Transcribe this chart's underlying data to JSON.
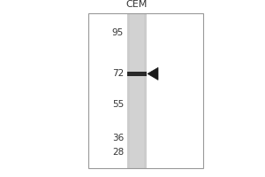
{
  "lane_label": "CEM",
  "mw_markers": [
    95,
    72,
    55,
    36,
    28
  ],
  "band_mw": 72,
  "bg_color": "#ffffff",
  "lane_bg_color": "#cccccc",
  "band_color": "#2a2a2a",
  "arrow_color": "#1a1a1a",
  "label_color": "#333333",
  "border_color": "#999999",
  "title_fontsize": 8,
  "marker_fontsize": 7.5,
  "fig_width": 3.0,
  "fig_height": 2.0,
  "dpi": 100
}
